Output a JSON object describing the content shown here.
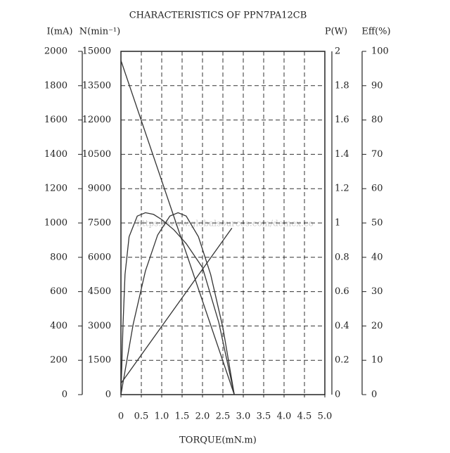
{
  "chart_data": {
    "type": "line",
    "title": "CHARACTERISTICS OF PPN7PA12CB",
    "xlabel": "TORQUE(mN.m)",
    "watermark": "https://www.globalsources.com/demex.co",
    "xlim": [
      0,
      5
    ],
    "xticks": [
      0,
      0.5,
      {
        "value": 1,
        "label": "1.0"
      },
      1.5,
      {
        "value": 2,
        "label": "2.0"
      },
      2.5,
      {
        "value": 3,
        "label": "3.0"
      },
      3.5,
      {
        "value": 4,
        "label": "4.0"
      },
      4.5,
      {
        "value": 5,
        "label": "5.0"
      }
    ],
    "grid": true,
    "axes": [
      {
        "label": "I(mA)",
        "lim": [
          0,
          2000
        ],
        "ticks": [
          0,
          200,
          400,
          600,
          800,
          1000,
          1200,
          1400,
          1600,
          1800,
          2000
        ]
      },
      {
        "label": "N(min⁻¹)",
        "lim": [
          0,
          15000
        ],
        "ticks": [
          0,
          1500,
          3000,
          4500,
          6000,
          7500,
          9000,
          10500,
          12000,
          13500,
          15000
        ]
      },
      {
        "label": "P(W)",
        "lim": [
          0,
          2
        ],
        "ticks": [
          0,
          0.2,
          0.4,
          0.6,
          0.8,
          1,
          1.2,
          1.4,
          1.6,
          1.8,
          2
        ]
      },
      {
        "label": "Eff(%)",
        "lim": [
          0,
          100
        ],
        "ticks": [
          0,
          10,
          20,
          30,
          40,
          50,
          60,
          70,
          80,
          90,
          100
        ]
      }
    ],
    "series": [
      {
        "axis": 0,
        "color": "#333333",
        "x": [
          0,
          2.72
        ],
        "values": [
          65,
          970
        ]
      },
      {
        "axis": 1,
        "color": "#333333",
        "x": [
          0,
          2.78
        ],
        "values": [
          14600,
          0
        ]
      },
      {
        "axis": 2,
        "color": "#333333",
        "x": [
          0,
          0.3,
          0.6,
          0.9,
          1.2,
          1.4,
          1.6,
          1.9,
          2.2,
          2.5,
          2.78
        ],
        "values": [
          0,
          0.41,
          0.72,
          0.93,
          1.04,
          1.06,
          1.04,
          0.92,
          0.7,
          0.39,
          0
        ]
      },
      {
        "axis": 3,
        "color": "#333333",
        "x": [
          0,
          0.05,
          0.1,
          0.2,
          0.4,
          0.6,
          0.8,
          1.0,
          1.3,
          1.6,
          2.0,
          2.4,
          2.78
        ],
        "values": [
          0,
          20,
          35,
          46,
          52,
          53,
          52.5,
          51,
          48,
          44,
          37,
          21,
          0
        ]
      }
    ]
  }
}
